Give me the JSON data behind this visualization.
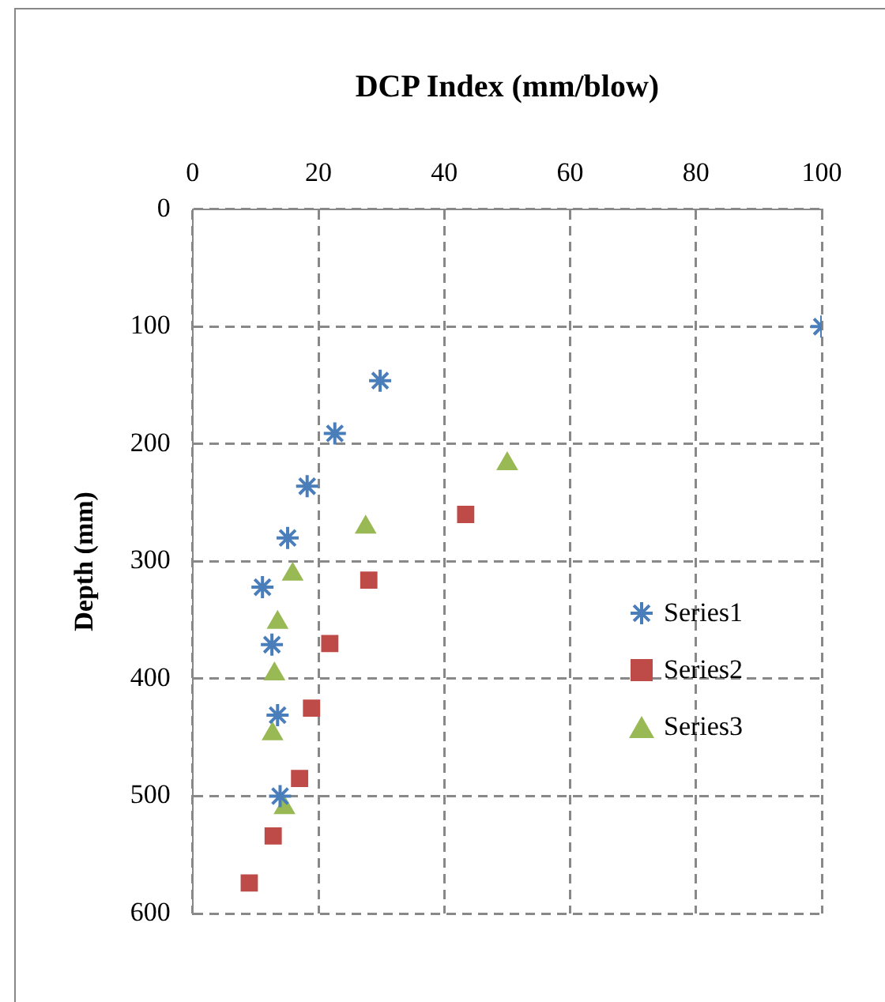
{
  "chart_data": {
    "type": "scatter",
    "xlabel": "DCP Index (mm/blow)",
    "ylabel": "Depth (mm)",
    "xlim": [
      0,
      100
    ],
    "xticks": [
      0,
      20,
      40,
      60,
      80,
      100
    ],
    "ylim": [
      600,
      0
    ],
    "yticks": [
      0,
      100,
      200,
      300,
      400,
      500,
      600
    ],
    "grid": true,
    "legend": "right",
    "series": [
      {
        "name": "Series1",
        "color": "#4a7ebb",
        "marker": "cross",
        "x": [
          100,
          29.8,
          22.6,
          18.2,
          15.1,
          11.1,
          12.6,
          13.5,
          13.9
        ],
        "values": [
          100,
          146,
          191,
          236,
          280,
          322,
          371,
          431,
          500
        ]
      },
      {
        "name": "Series2",
        "color": "#be4b48",
        "marker": "square",
        "x": [
          43.4,
          28,
          21.8,
          18.9,
          17,
          12.8,
          9
        ],
        "values": [
          260,
          316,
          370,
          425,
          485,
          534,
          574
        ]
      },
      {
        "name": "Series3",
        "color": "#98b954",
        "marker": "triangle",
        "x": [
          50,
          27.5,
          15.9,
          13.5,
          13,
          12.7,
          14.6
        ],
        "values": [
          217,
          271,
          311,
          352,
          396,
          447,
          510
        ]
      }
    ]
  }
}
